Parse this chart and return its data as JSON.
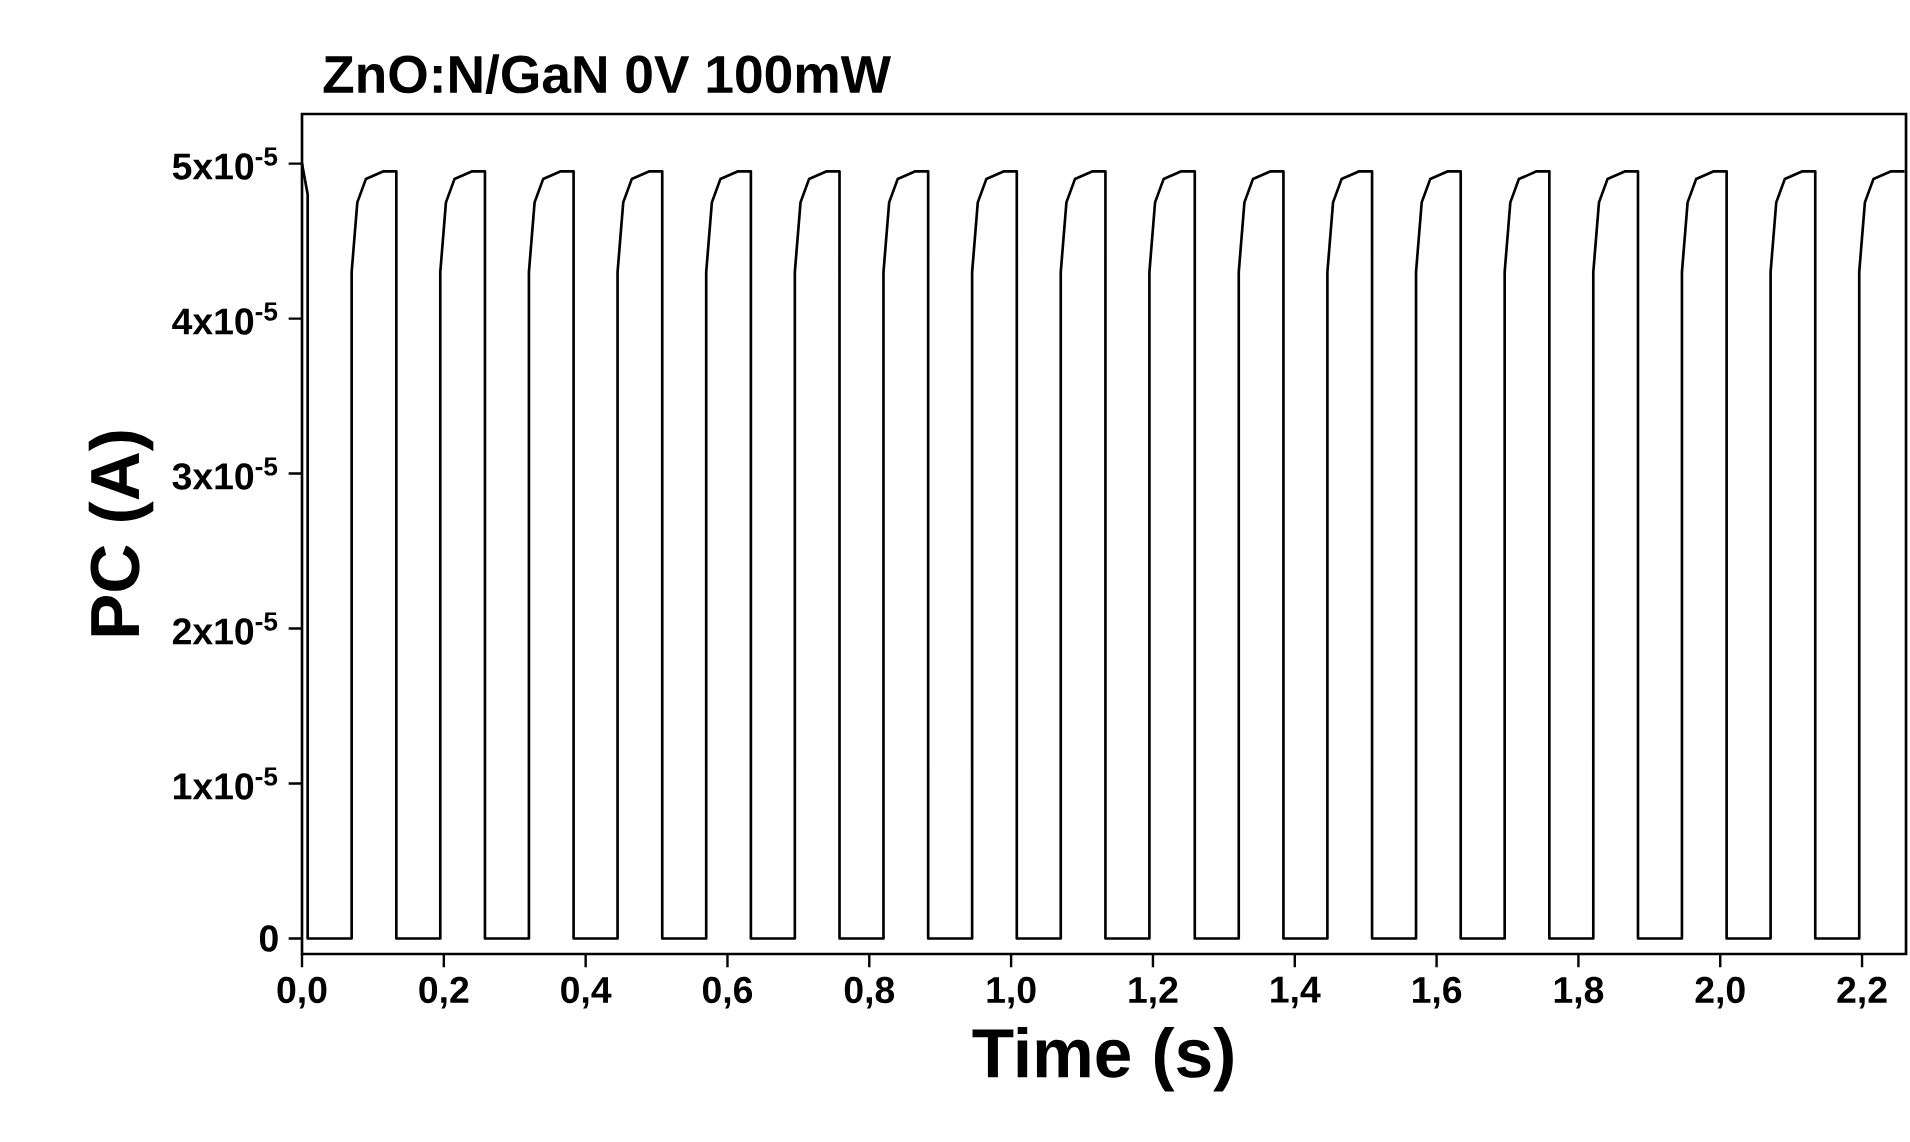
{
  "chart_data": {
    "type": "line",
    "title": "ZnO:N/GaN    0V 100mW",
    "xlabel": "Time (s)",
    "ylabel": "PC (A)",
    "xlim": [
      0,
      2.262
    ],
    "ylim": [
      -1e-06,
      5.32e-05
    ],
    "xticks": [
      {
        "value": 0,
        "label": "0,0"
      },
      {
        "value": 0.2,
        "label": "0,2"
      },
      {
        "value": 0.4,
        "label": "0,4"
      },
      {
        "value": 0.6,
        "label": "0,6"
      },
      {
        "value": 0.8,
        "label": "0,8"
      },
      {
        "value": 1.0,
        "label": "1,0"
      },
      {
        "value": 1.2,
        "label": "1,2"
      },
      {
        "value": 1.4,
        "label": "1,4"
      },
      {
        "value": 1.6,
        "label": "1,6"
      },
      {
        "value": 1.8,
        "label": "1,8"
      },
      {
        "value": 2.0,
        "label": "2,0"
      },
      {
        "value": 2.2,
        "label": "2,2"
      }
    ],
    "yticks": [
      0,
      {
        "value": 1e-05,
        "label": "1x10$^{-5}$"
      },
      {
        "value": 2e-05,
        "label": "2x10$^{-5}$"
      },
      {
        "value": 3e-05,
        "label": "3x10$^{-5}$"
      },
      {
        "value": 4e-05,
        "label": "4x10$^{-5}$"
      },
      {
        "value": 5e-05,
        "label": "5x10$^{-5}$"
      }
    ],
    "grid": false,
    "series": [
      {
        "color": "#000000",
        "x": [
          0,
          0.004,
          0.008,
          0.008,
          0.07,
          0.07,
          0.078,
          0.09,
          0.115,
          0.133,
          0.133,
          0.195,
          0.195,
          0.203,
          0.215,
          0.24,
          0.258,
          0.258,
          0.32,
          0.32,
          0.328,
          0.34,
          0.365,
          0.383,
          0.383,
          0.445,
          0.445,
          0.453,
          0.465,
          0.49,
          0.508,
          0.508,
          0.57,
          0.57,
          0.578,
          0.59,
          0.615,
          0.633,
          0.633,
          0.695,
          0.695,
          0.703,
          0.715,
          0.74,
          0.758,
          0.758,
          0.82,
          0.82,
          0.828,
          0.84,
          0.865,
          0.883,
          0.883,
          0.945,
          0.945,
          0.953,
          0.965,
          0.99,
          1.008,
          1.008,
          1.07,
          1.07,
          1.078,
          1.09,
          1.115,
          1.133,
          1.133,
          1.195,
          1.195,
          1.203,
          1.215,
          1.24,
          1.259,
          1.259,
          1.321,
          1.321,
          1.329,
          1.341,
          1.366,
          1.384,
          1.384,
          1.446,
          1.446,
          1.454,
          1.466,
          1.491,
          1.509,
          1.509,
          1.571,
          1.571,
          1.579,
          1.591,
          1.616,
          1.634,
          1.634,
          1.696,
          1.696,
          1.704,
          1.716,
          1.741,
          1.759,
          1.759,
          1.821,
          1.821,
          1.829,
          1.841,
          1.866,
          1.884,
          1.884,
          1.946,
          1.946,
          1.954,
          1.966,
          1.991,
          2.009,
          2.009,
          2.071,
          2.071,
          2.079,
          2.091,
          2.116,
          2.134,
          2.134,
          2.196,
          2.196,
          2.204,
          2.216,
          2.241,
          2.26
        ],
        "values": [
          5e-05,
          4.9e-05,
          4.8e-05,
          0,
          0,
          4.3e-05,
          4.75e-05,
          4.9e-05,
          4.95e-05,
          4.95e-05,
          0,
          0,
          4.3e-05,
          4.75e-05,
          4.9e-05,
          4.95e-05,
          4.95e-05,
          0,
          0,
          4.3e-05,
          4.75e-05,
          4.9e-05,
          4.95e-05,
          4.95e-05,
          0,
          0,
          4.3e-05,
          4.75e-05,
          4.9e-05,
          4.95e-05,
          4.95e-05,
          0,
          0,
          4.3e-05,
          4.75e-05,
          4.9e-05,
          4.95e-05,
          4.95e-05,
          0,
          0,
          4.3e-05,
          4.75e-05,
          4.9e-05,
          4.95e-05,
          4.95e-05,
          0,
          0,
          4.3e-05,
          4.75e-05,
          4.9e-05,
          4.95e-05,
          4.95e-05,
          0,
          0,
          4.3e-05,
          4.75e-05,
          4.9e-05,
          4.95e-05,
          4.95e-05,
          0,
          0,
          4.3e-05,
          4.75e-05,
          4.9e-05,
          4.95e-05,
          4.95e-05,
          0,
          0,
          4.3e-05,
          4.75e-05,
          4.9e-05,
          4.95e-05,
          4.95e-05,
          0,
          0,
          4.3e-05,
          4.75e-05,
          4.9e-05,
          4.95e-05,
          4.95e-05,
          0,
          0,
          4.3e-05,
          4.75e-05,
          4.9e-05,
          4.95e-05,
          4.95e-05,
          0,
          0,
          4.3e-05,
          4.75e-05,
          4.9e-05,
          4.95e-05,
          4.95e-05,
          0,
          0,
          4.3e-05,
          4.75e-05,
          4.9e-05,
          4.95e-05,
          4.95e-05,
          0,
          0,
          4.3e-05,
          4.75e-05,
          4.9e-05,
          4.95e-05,
          4.95e-05,
          0,
          0,
          4.3e-05,
          4.75e-05,
          4.9e-05,
          4.95e-05,
          4.95e-05,
          0,
          0,
          4.3e-05,
          4.75e-05,
          4.9e-05,
          4.95e-05,
          4.95e-05,
          0,
          0,
          4.3e-05,
          4.75e-05,
          4.9e-05,
          4.95e-05,
          4.95e-05
        ]
      }
    ]
  }
}
